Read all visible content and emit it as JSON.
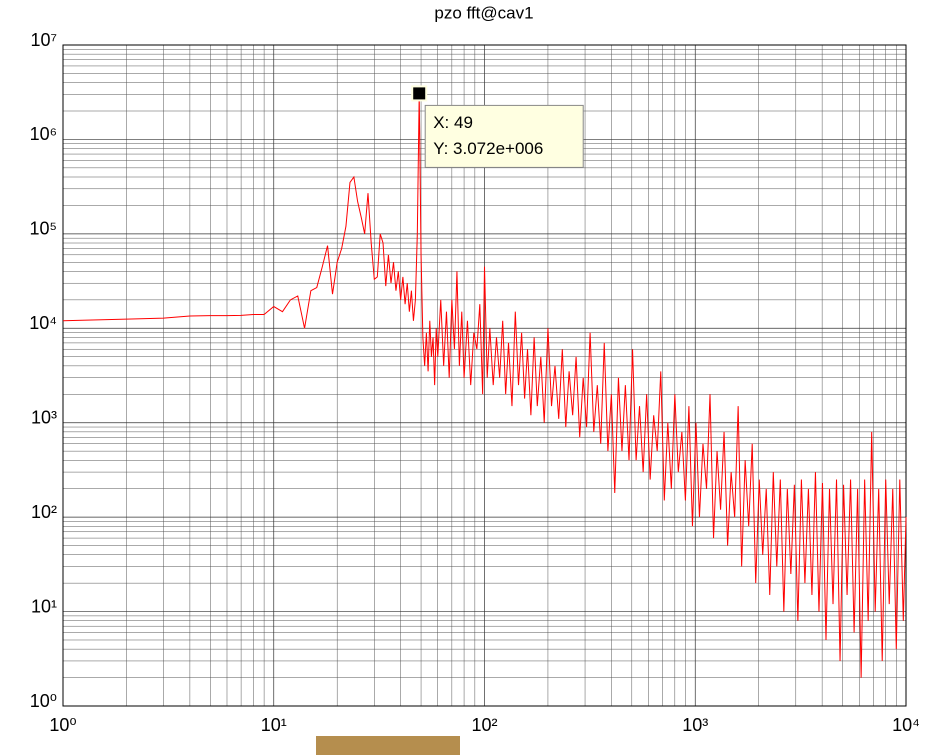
{
  "chart_data": {
    "type": "line",
    "title": "pzo fft@cav1",
    "xscale": "log",
    "yscale": "log",
    "grid": true,
    "minor_grid": true,
    "xlim": [
      1,
      10000
    ],
    "ylim": [
      1,
      10000000
    ],
    "xticks": [
      {
        "value": 1,
        "label": "10⁰"
      },
      {
        "value": 10,
        "label": "10¹"
      },
      {
        "value": 100,
        "label": "10²"
      },
      {
        "value": 1000,
        "label": "10³"
      },
      {
        "value": 10000,
        "label": "10⁴"
      }
    ],
    "yticks": [
      {
        "value": 1,
        "label": "10⁰"
      },
      {
        "value": 10,
        "label": "10¹"
      },
      {
        "value": 100,
        "label": "10²"
      },
      {
        "value": 1000,
        "label": "10³"
      },
      {
        "value": 10000,
        "label": "10⁴"
      },
      {
        "value": 100000,
        "label": "10⁵"
      },
      {
        "value": 1000000,
        "label": "10⁶"
      },
      {
        "value": 10000000,
        "label": "10⁷"
      }
    ],
    "x": [
      1,
      2,
      3,
      4,
      5,
      6,
      7,
      8,
      9,
      10,
      11,
      12,
      13,
      14,
      15,
      16,
      17,
      18,
      19,
      20,
      21,
      22,
      23,
      24,
      25,
      26,
      27,
      28,
      29,
      30,
      31,
      32,
      33,
      34,
      35,
      36,
      37,
      38,
      39,
      40,
      41,
      42,
      43,
      44,
      45,
      46,
      47,
      48,
      49,
      50,
      51,
      52,
      53,
      54,
      55,
      56,
      57,
      58,
      59,
      60,
      62,
      64,
      66,
      68,
      70,
      72,
      74,
      76,
      78,
      80,
      83,
      86,
      89,
      92,
      95,
      98,
      100,
      103,
      106,
      110,
      114,
      118,
      122,
      126,
      130,
      135,
      140,
      145,
      150,
      155,
      160,
      166,
      172,
      178,
      185,
      192,
      200,
      208,
      216,
      225,
      234,
      243,
      252,
      262,
      272,
      283,
      294,
      305,
      317,
      330,
      343,
      356,
      370,
      385,
      400,
      415,
      432,
      449,
      466,
      485,
      504,
      524,
      544,
      566,
      588,
      611,
      635,
      660,
      686,
      713,
      741,
      770,
      800,
      831,
      864,
      898,
      933,
      970,
      1008,
      1047,
      1088,
      1131,
      1175,
      1221,
      1269,
      1319,
      1370,
      1424,
      1480,
      1538,
      1598,
      1660,
      1725,
      1793,
      1863,
      1936,
      2012,
      2090,
      2172,
      2257,
      2346,
      2437,
      2533,
      2632,
      2735,
      2842,
      2953,
      3069,
      3189,
      3314,
      3443,
      3578,
      3718,
      3864,
      4015,
      4172,
      4335,
      4505,
      4681,
      4865,
      5055,
      5253,
      5458,
      5672,
      5894,
      6125,
      6365,
      6614,
      6873,
      7142,
      7421,
      7712,
      8013,
      8327,
      8653,
      8992,
      9344,
      9710,
      10000
    ],
    "series": [
      {
        "color": "#ff0000",
        "values": [
          12000,
          12500,
          12800,
          13500,
          13600,
          13600,
          13700,
          14000,
          14000,
          17000,
          15000,
          20000,
          22000,
          10000,
          25000,
          27000,
          45000,
          75000,
          23000,
          50000,
          70000,
          120000,
          350000,
          400000,
          220000,
          150000,
          100000,
          270000,
          80000,
          33000,
          35000,
          100000,
          80000,
          28000,
          60000,
          30000,
          50000,
          25000,
          40000,
          20000,
          35000,
          18000,
          30000,
          15000,
          25000,
          12000,
          20000,
          100000,
          3072000,
          60000,
          8000,
          4000,
          9000,
          3500,
          12000,
          5000,
          8000,
          2500,
          10000,
          5000,
          20000,
          4000,
          15000,
          3000,
          20000,
          6000,
          40000,
          4000,
          15000,
          3000,
          12000,
          2500,
          9000,
          6000,
          18000,
          2000,
          45000,
          3000,
          10000,
          2500,
          8000,
          3000,
          12000,
          2000,
          7000,
          1500,
          15000,
          2500,
          9000,
          1800,
          6000,
          1200,
          8000,
          1500,
          5000,
          1000,
          10000,
          1500,
          4000,
          1100,
          6000,
          900,
          3500,
          1200,
          5000,
          700,
          3000,
          900,
          9000,
          800,
          2500,
          600,
          7000,
          500,
          2000,
          180,
          3000,
          500,
          2500,
          400,
          6000,
          400,
          1500,
          300,
          2000,
          250,
          1200,
          500,
          3500,
          150,
          1000,
          200,
          2000,
          300,
          800,
          150,
          1500,
          80,
          1000,
          100,
          600,
          200,
          2000,
          60,
          500,
          120,
          800,
          50,
          300,
          100,
          1500,
          30,
          400,
          80,
          600,
          20,
          250,
          40,
          200,
          15,
          300,
          30,
          250,
          10,
          200,
          25,
          220,
          8,
          250,
          20,
          200,
          15,
          300,
          10,
          230,
          5,
          200,
          12,
          250,
          3,
          220,
          15,
          250,
          6,
          200,
          2,
          250,
          8,
          800,
          10,
          200,
          3,
          250,
          12,
          200,
          4,
          250,
          8,
          100
        ]
      }
    ],
    "annotations": [
      {
        "x": 49,
        "y": 3072000,
        "lines": [
          "X: 49",
          "Y: 3.072e+006"
        ]
      }
    ]
  }
}
